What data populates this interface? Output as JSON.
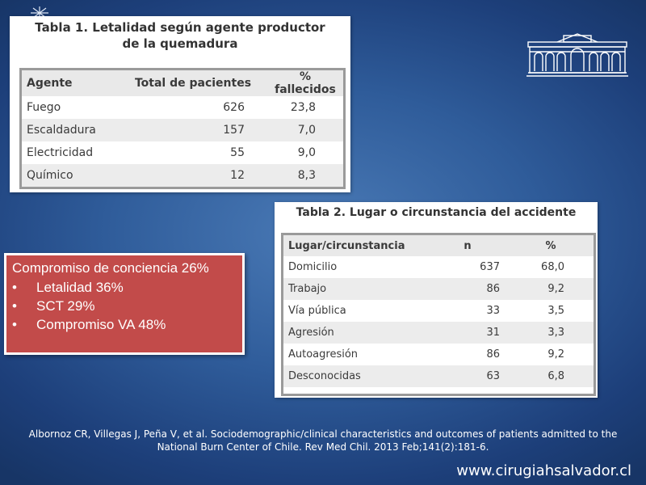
{
  "table1": {
    "title_line1": "Tabla 1. Letalidad según agente productor",
    "title_line2": "de la quemadura",
    "headers": [
      "Agente",
      "Total de pacientes",
      "% fallecidos"
    ],
    "rows": [
      [
        "Fuego",
        "626",
        "23,8"
      ],
      [
        "Escaldadura",
        "157",
        "7,0"
      ],
      [
        "Electricidad",
        "55",
        "9,0"
      ],
      [
        "Químico",
        "12",
        "8,3"
      ]
    ]
  },
  "table2": {
    "title": "Tabla 2. Lugar o circunstancia del accidente",
    "headers": [
      "Lugar/circunstancia",
      "n",
      "%"
    ],
    "rows": [
      [
        "Domicilio",
        "637",
        "68,0"
      ],
      [
        "Trabajo",
        "86",
        "9,2"
      ],
      [
        "Vía pública",
        "33",
        "3,5"
      ],
      [
        "Agresión",
        "31",
        "3,3"
      ],
      [
        "Autoagresión",
        "86",
        "9,2"
      ],
      [
        "Desconocidas",
        "63",
        "6,8"
      ]
    ]
  },
  "callout": {
    "heading": "Compromiso de conciencia 26%",
    "bullet_glyph": "•",
    "items": [
      "Letalidad 36%",
      "SCT 29%",
      "Compromiso VA 48%"
    ]
  },
  "citation": {
    "line1": "Albornoz CR, Villegas J, Peña V, et al. Sociodemographic/clinical characteristics and outcomes of patients admitted to the",
    "line2": "National Burn Center of Chile. Rev Med Chil. 2013 Feb;141(2):181-6."
  },
  "footer": {
    "url": "www.cirugiahsalvador.cl"
  },
  "icons": {
    "logo": "hospital-building-icon",
    "spark": "spark-icon"
  },
  "colors": {
    "callout_bg": "#c24b4a",
    "background": "#2f5c9a"
  }
}
